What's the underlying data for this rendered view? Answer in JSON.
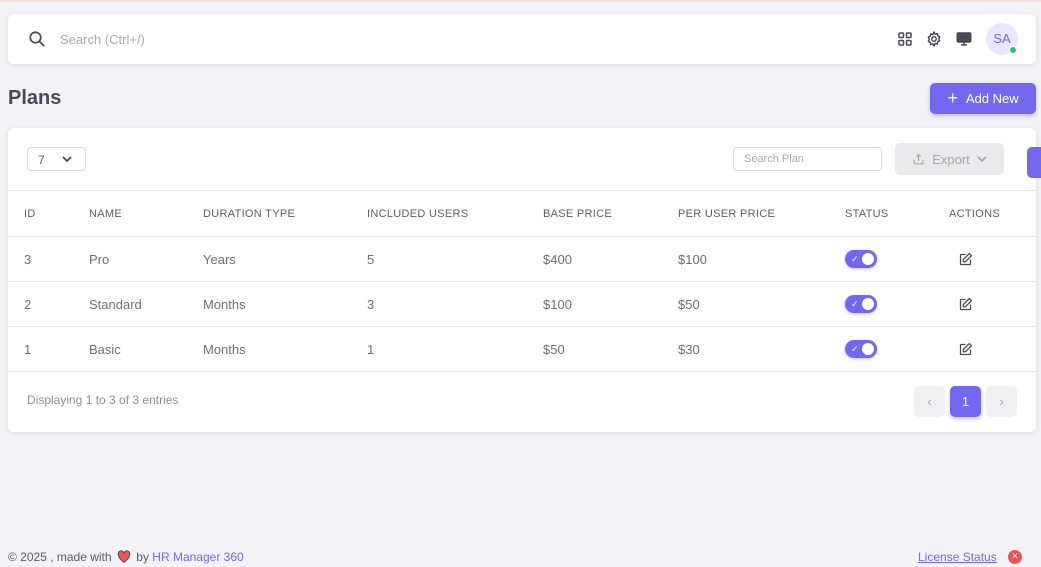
{
  "navbar": {
    "search_placeholder": "Search (Ctrl+/)",
    "avatar_initials": "SA"
  },
  "page": {
    "title": "Plans",
    "add_new_label": "Add New"
  },
  "table_controls": {
    "page_length": "7",
    "search_placeholder": "Search Plan",
    "export_label": "Export"
  },
  "table": {
    "headers": [
      "ID",
      "NAME",
      "DURATION TYPE",
      "INCLUDED USERS",
      "BASE PRICE",
      "PER USER PRICE",
      "STATUS",
      "ACTIONS"
    ],
    "rows": [
      {
        "id": "3",
        "name": "Pro",
        "duration": "Years",
        "users": "5",
        "base_price": "$400",
        "per_user_price": "$100",
        "status_on": true
      },
      {
        "id": "2",
        "name": "Standard",
        "duration": "Months",
        "users": "3",
        "base_price": "$100",
        "per_user_price": "$50",
        "status_on": true
      },
      {
        "id": "1",
        "name": "Basic",
        "duration": "Months",
        "users": "1",
        "base_price": "$50",
        "per_user_price": "$30",
        "status_on": true
      }
    ]
  },
  "pagination": {
    "info": "Displaying 1 to 3 of 3 entries",
    "prev": "‹",
    "current": "1",
    "next": "›"
  },
  "footer": {
    "copyright": "© 2025 , made with",
    "by": "by",
    "brand": "HR Manager 360",
    "license_label": "License Status",
    "license_icon": "×"
  },
  "colors": {
    "primary": "#7367f0",
    "success": "#28c76f",
    "danger": "#ea5455",
    "background": "#f3f2f6"
  }
}
